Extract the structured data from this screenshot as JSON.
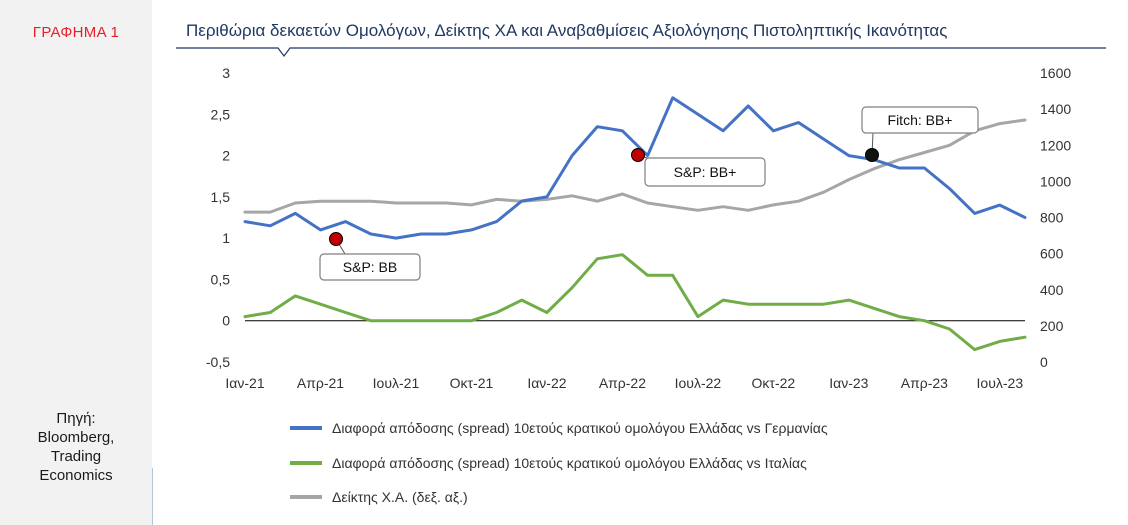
{
  "figure_label": "ΓΡΑΦΗΜΑ 1",
  "source": {
    "lines": [
      "Πηγή:",
      "Bloomberg,",
      "Trading",
      "Economics"
    ]
  },
  "colors": {
    "title": "#1f3864",
    "label": "#e8202a",
    "germany_spread": "#4472c4",
    "italy_spread": "#70ad47",
    "stock_index": "#a6a6a6",
    "sp_marker": "#c00000",
    "fitch_marker": "#111111"
  },
  "chart_data": {
    "type": "line",
    "title": "Περιθώρια δεκαετών Ομολόγων, Δείκτης ΧΑ και Αναβαθμίσεις Αξιολόγησης Πιστοληπτικής Ικανότητας",
    "x_tick_labels": [
      "Ιαν-21",
      "Απρ-21",
      "Ιουλ-21",
      "Οκτ-21",
      "Ιαν-22",
      "Απρ-22",
      "Ιουλ-22",
      "Οκτ-22",
      "Ιαν-23",
      "Απρ-23",
      "Ιουλ-23"
    ],
    "x_range": [
      "2021-01",
      "2023-08"
    ],
    "y_left": {
      "range": [
        -0.5,
        3
      ],
      "tick_labels": [
        "3",
        "2,5",
        "2",
        "1,5",
        "1",
        "0,5",
        "0",
        "-0,5"
      ]
    },
    "y_right": {
      "range": [
        0,
        1600
      ],
      "tick_labels": [
        "1600",
        "1400",
        "1200",
        "1000",
        "800",
        "600",
        "400",
        "200",
        "0"
      ]
    },
    "grid": false,
    "zero_line": true,
    "legend_position": "bottom",
    "series": [
      {
        "name": "Διαφορά απόδοσης (spread) 10ετούς κρατικού ομολόγου Ελλάδας vs Γερμανίας",
        "axis": "left",
        "x": [
          "2021-01",
          "2021-02",
          "2021-03",
          "2021-04",
          "2021-05",
          "2021-06",
          "2021-07",
          "2021-08",
          "2021-09",
          "2021-10",
          "2021-11",
          "2021-12",
          "2022-01",
          "2022-02",
          "2022-03",
          "2022-04",
          "2022-05",
          "2022-06",
          "2022-07",
          "2022-08",
          "2022-09",
          "2022-10",
          "2022-11",
          "2022-12",
          "2023-01",
          "2023-02",
          "2023-03",
          "2023-04",
          "2023-05",
          "2023-06",
          "2023-07",
          "2023-08"
        ],
        "values": [
          1.2,
          1.15,
          1.3,
          1.1,
          1.2,
          1.05,
          1.0,
          1.05,
          1.05,
          1.1,
          1.2,
          1.45,
          1.5,
          2.0,
          2.35,
          2.3,
          2.0,
          2.7,
          2.5,
          2.3,
          2.6,
          2.3,
          2.4,
          2.2,
          2.0,
          1.95,
          1.85,
          1.85,
          1.6,
          1.3,
          1.4,
          1.25
        ]
      },
      {
        "name": "Διαφορά απόδοσης (spread) 10ετούς κρατικού ομολόγου Ελλάδας vs Ιταλίας",
        "axis": "left",
        "x": [
          "2021-01",
          "2021-02",
          "2021-03",
          "2021-04",
          "2021-05",
          "2021-06",
          "2021-07",
          "2021-08",
          "2021-09",
          "2021-10",
          "2021-11",
          "2021-12",
          "2022-01",
          "2022-02",
          "2022-03",
          "2022-04",
          "2022-05",
          "2022-06",
          "2022-07",
          "2022-08",
          "2022-09",
          "2022-10",
          "2022-11",
          "2022-12",
          "2023-01",
          "2023-02",
          "2023-03",
          "2023-04",
          "2023-05",
          "2023-06",
          "2023-07",
          "2023-08"
        ],
        "values": [
          0.05,
          0.1,
          0.3,
          0.2,
          0.1,
          0.0,
          0.0,
          0.0,
          0.0,
          0.0,
          0.1,
          0.25,
          0.1,
          0.4,
          0.75,
          0.8,
          0.55,
          0.55,
          0.05,
          0.25,
          0.2,
          0.2,
          0.2,
          0.2,
          0.25,
          0.15,
          0.05,
          0.0,
          -0.1,
          -0.35,
          -0.25,
          -0.2
        ]
      },
      {
        "name": "Δείκτης Χ.Α. (δεξ. αξ.)",
        "axis": "right",
        "x": [
          "2021-01",
          "2021-02",
          "2021-03",
          "2021-04",
          "2021-05",
          "2021-06",
          "2021-07",
          "2021-08",
          "2021-09",
          "2021-10",
          "2021-11",
          "2021-12",
          "2022-01",
          "2022-02",
          "2022-03",
          "2022-04",
          "2022-05",
          "2022-06",
          "2022-07",
          "2022-08",
          "2022-09",
          "2022-10",
          "2022-11",
          "2022-12",
          "2023-01",
          "2023-02",
          "2023-03",
          "2023-04",
          "2023-05",
          "2023-06",
          "2023-07",
          "2023-08"
        ],
        "values": [
          830,
          830,
          880,
          890,
          890,
          890,
          880,
          880,
          880,
          870,
          900,
          890,
          900,
          920,
          890,
          930,
          880,
          860,
          840,
          860,
          840,
          870,
          890,
          940,
          1010,
          1070,
          1120,
          1160,
          1200,
          1280,
          1320,
          1340
        ]
      }
    ],
    "annotations": [
      {
        "label": "S&P: BB",
        "x": "2021-04",
        "y": 1.0,
        "marker": "sp"
      },
      {
        "label": "S&P: BB+",
        "x": "2022-04",
        "y": 2.0,
        "marker": "sp"
      },
      {
        "label": "Fitch: BB+",
        "x": "2022-12",
        "y": 2.0,
        "marker": "fitch"
      }
    ]
  }
}
